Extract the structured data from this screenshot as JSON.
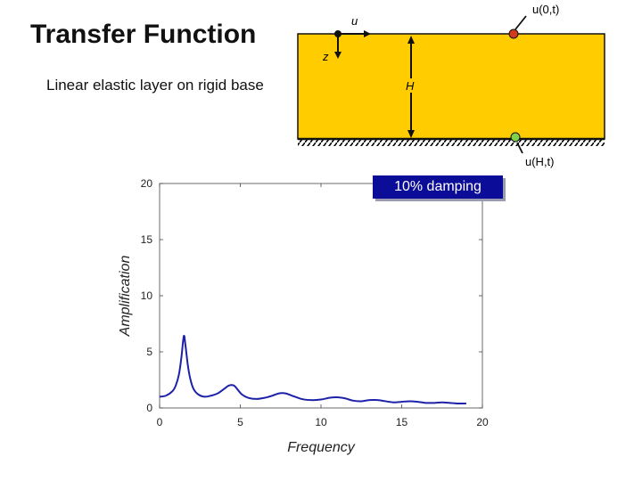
{
  "header": {
    "title": "Transfer Function",
    "subtitle": "Linear elastic layer on rigid base"
  },
  "diagram": {
    "label_u": "u",
    "label_z": "z",
    "label_H": "H",
    "label_top": "u(0,t)",
    "label_base": "u(H,t)",
    "layer_color": "#ffcc00",
    "top_point_color": "#d23a1e",
    "base_point_color": "#7fd04a"
  },
  "badge": {
    "text": "10% damping",
    "color": "#0b0c97"
  },
  "chart_data": {
    "type": "line",
    "xlabel": "Frequency",
    "ylabel": "Amplification",
    "xlim": [
      0,
      20
    ],
    "ylim": [
      0,
      20
    ],
    "xticks": [
      0,
      5,
      10,
      15,
      20
    ],
    "yticks": [
      0,
      5,
      10,
      15,
      20
    ],
    "grid": false,
    "series": [
      {
        "color": "#1d22a8",
        "x": [
          0,
          0.4,
          0.8,
          1.0,
          1.2,
          1.35,
          1.5,
          1.6,
          1.75,
          1.9,
          2.1,
          2.4,
          2.8,
          3.2,
          3.6,
          4.0,
          4.3,
          4.6,
          4.8,
          5.1,
          5.5,
          6.0,
          6.5,
          7.0,
          7.4,
          7.8,
          8.2,
          8.8,
          9.4,
          10.0,
          10.5,
          11.0,
          11.5,
          12.0,
          12.5,
          13.0,
          13.5,
          14.0,
          14.5,
          15.0,
          15.5,
          16.0,
          16.5,
          17.0,
          17.5,
          18.0,
          18.5,
          19.0
        ],
        "y": [
          1.0,
          1.1,
          1.5,
          2.0,
          3.0,
          4.5,
          6.4,
          5.6,
          3.8,
          2.6,
          1.7,
          1.2,
          1.0,
          1.1,
          1.3,
          1.7,
          2.0,
          2.0,
          1.7,
          1.2,
          0.9,
          0.8,
          0.9,
          1.1,
          1.3,
          1.3,
          1.1,
          0.8,
          0.7,
          0.75,
          0.9,
          0.95,
          0.85,
          0.65,
          0.6,
          0.7,
          0.7,
          0.6,
          0.5,
          0.55,
          0.6,
          0.55,
          0.45,
          0.45,
          0.5,
          0.45,
          0.4,
          0.4
        ]
      }
    ]
  }
}
